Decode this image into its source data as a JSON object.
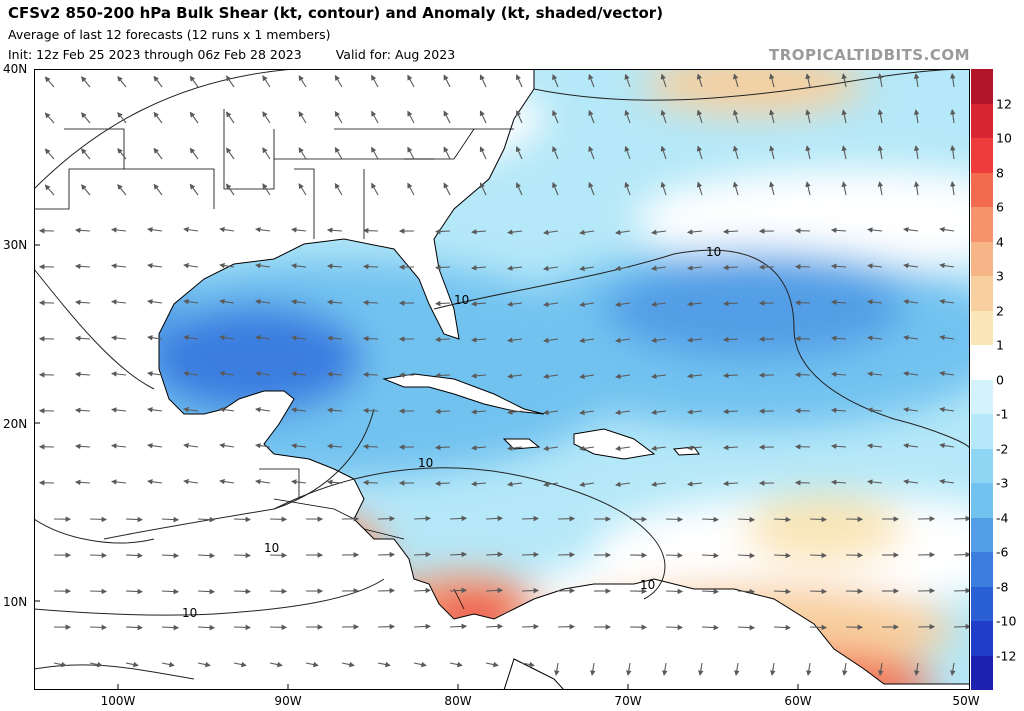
{
  "header": {
    "title": "CFSv2 850-200 hPa Bulk Shear (kt, contour) and Anomaly (kt, shaded/vector)",
    "subtitle": "Average of last 12 forecasts (12 runs x 1 members)",
    "init": "Init: 12z Feb 25 2023 through 06z Feb 28 2023",
    "valid": "Valid for: Aug 2023",
    "brand": "TROPICALTIDBITS.COM"
  },
  "map": {
    "region": "Gulf of Mexico / Caribbean / Western Atlantic",
    "lat_labels": [
      "40N",
      "30N",
      "20N",
      "10N"
    ],
    "lon_labels": [
      "100W",
      "90W",
      "80W",
      "70W",
      "60W",
      "50W"
    ],
    "contour_labels": [
      "10",
      "10",
      "10",
      "10",
      "10",
      "10"
    ],
    "vector_field": "shear anomaly vectors (grey arrows)"
  },
  "colorbar": {
    "labels": [
      "12",
      "10",
      "8",
      "6",
      "4",
      "3",
      "2",
      "1",
      "0",
      "-1",
      "-2",
      "-3",
      "-4",
      "-6",
      "-8",
      "-10",
      "-12"
    ],
    "colors": [
      "#b2152a",
      "#d92633",
      "#ee3b3b",
      "#f26b4f",
      "#f6936c",
      "#f7b487",
      "#f8cf9e",
      "#fae6b7",
      "#ffffff",
      "#d4f2fb",
      "#b5e8f8",
      "#8fd6f4",
      "#72c2f0",
      "#539ee6",
      "#3b7ee0",
      "#2b5fd6",
      "#1f3dc9",
      "#1d22b0"
    ]
  }
}
